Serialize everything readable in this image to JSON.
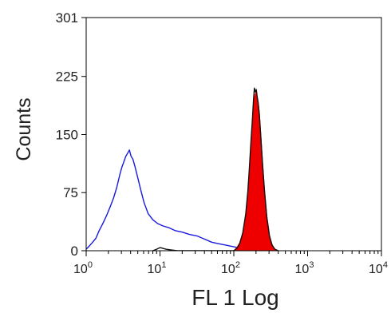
{
  "chart_data": {
    "type": "line",
    "title": "",
    "xlabel": "FL 1 Log",
    "ylabel": "Counts",
    "xscale": "log",
    "xlim": [
      1,
      10000
    ],
    "ylim": [
      0,
      301
    ],
    "grid": false,
    "x_ticks": [
      {
        "value": 1,
        "base": "10",
        "exp": "0"
      },
      {
        "value": 10,
        "base": "10",
        "exp": "1"
      },
      {
        "value": 100,
        "base": "10",
        "exp": "2"
      },
      {
        "value": 1000,
        "base": "10",
        "exp": "3"
      },
      {
        "value": 10000,
        "base": "10",
        "exp": "4"
      }
    ],
    "y_ticks": [
      {
        "value": 0,
        "label": "0"
      },
      {
        "value": 75,
        "label": "75"
      },
      {
        "value": 150,
        "label": "150"
      },
      {
        "value": 225,
        "label": "225"
      },
      {
        "value": 301,
        "label": "301"
      }
    ],
    "series": [
      {
        "style": "outline",
        "color": "#1a1adc",
        "points": [
          [
            1.0,
            2
          ],
          [
            1.1,
            6
          ],
          [
            1.2,
            10
          ],
          [
            1.35,
            16
          ],
          [
            1.5,
            26
          ],
          [
            1.7,
            36
          ],
          [
            1.9,
            46
          ],
          [
            2.1,
            56
          ],
          [
            2.35,
            68
          ],
          [
            2.6,
            82
          ],
          [
            2.85,
            98
          ],
          [
            3.05,
            108
          ],
          [
            3.25,
            115
          ],
          [
            3.45,
            122
          ],
          [
            3.65,
            126
          ],
          [
            3.85,
            130
          ],
          [
            4.05,
            122
          ],
          [
            4.3,
            118
          ],
          [
            4.6,
            108
          ],
          [
            5.0,
            94
          ],
          [
            5.5,
            78
          ],
          [
            6.1,
            62
          ],
          [
            6.9,
            48
          ],
          [
            8.0,
            40
          ],
          [
            9.3,
            35
          ],
          [
            11,
            32
          ],
          [
            13,
            30
          ],
          [
            16,
            26
          ],
          [
            20,
            24
          ],
          [
            25,
            21
          ],
          [
            32,
            19
          ],
          [
            40,
            15
          ],
          [
            50,
            11
          ],
          [
            63,
            9
          ],
          [
            80,
            7
          ],
          [
            100,
            5
          ],
          [
            126,
            3
          ],
          [
            160,
            2
          ],
          [
            200,
            1
          ],
          [
            250,
            0
          ]
        ]
      },
      {
        "style": "filled",
        "color": "#ee0000",
        "points": [
          [
            100,
            0
          ],
          [
            110,
            4
          ],
          [
            120,
            10
          ],
          [
            132,
            22
          ],
          [
            145,
            45
          ],
          [
            155,
            75
          ],
          [
            163,
            105
          ],
          [
            170,
            135
          ],
          [
            178,
            165
          ],
          [
            185,
            190
          ],
          [
            192,
            200
          ],
          [
            200,
            205
          ],
          [
            207,
            200
          ],
          [
            214,
            192
          ],
          [
            222,
            178
          ],
          [
            232,
            150
          ],
          [
            245,
            115
          ],
          [
            260,
            80
          ],
          [
            280,
            45
          ],
          [
            305,
            20
          ],
          [
            330,
            8
          ],
          [
            360,
            2
          ],
          [
            400,
            0
          ]
        ]
      },
      {
        "style": "outline",
        "color": "#111111",
        "points": [
          [
            8,
            0
          ],
          [
            9,
            2
          ],
          [
            10,
            4
          ],
          [
            11,
            3
          ],
          [
            12,
            2
          ],
          [
            14,
            1
          ],
          [
            17,
            0
          ],
          [
            100,
            0
          ],
          [
            110,
            3
          ],
          [
            120,
            9
          ],
          [
            132,
            23
          ],
          [
            145,
            47
          ],
          [
            155,
            77
          ],
          [
            163,
            108
          ],
          [
            170,
            138
          ],
          [
            178,
            168
          ],
          [
            185,
            195
          ],
          [
            190,
            210
          ],
          [
            196,
            205
          ],
          [
            202,
            208
          ],
          [
            208,
            198
          ],
          [
            214,
            190
          ],
          [
            222,
            176
          ],
          [
            232,
            148
          ],
          [
            245,
            112
          ],
          [
            260,
            78
          ],
          [
            280,
            43
          ],
          [
            305,
            18
          ],
          [
            330,
            7
          ],
          [
            360,
            2
          ],
          [
            400,
            0
          ]
        ]
      }
    ]
  }
}
